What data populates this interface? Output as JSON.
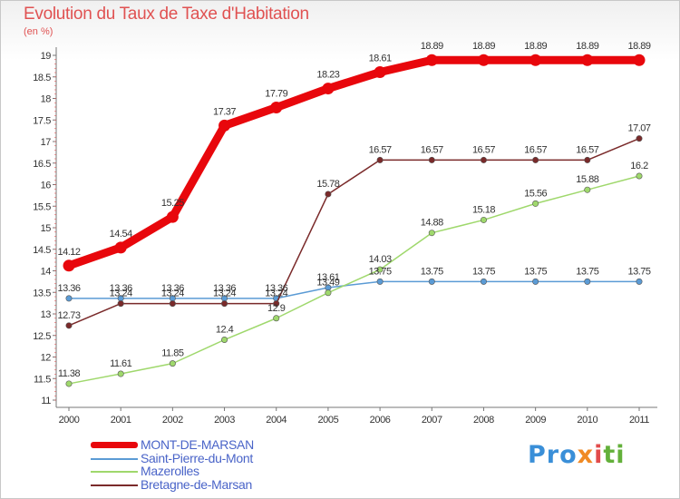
{
  "chart_data": {
    "type": "line",
    "title": "Evolution du Taux de Taxe d'Habitation",
    "ylabel": "(en %)",
    "x": [
      "2000",
      "2001",
      "2002",
      "2003",
      "2004",
      "2005",
      "2006",
      "2007",
      "2008",
      "2009",
      "2010",
      "2011"
    ],
    "ylim": [
      11,
      19
    ],
    "yticks": [
      "11",
      "11.5",
      "12",
      "12.5",
      "13",
      "13.5",
      "14",
      "14.5",
      "15",
      "15.5",
      "16",
      "16.5",
      "17",
      "17.5",
      "18",
      "18.5",
      "19"
    ],
    "grid": false,
    "legend_position": "bottom-left",
    "series": [
      {
        "name": "MONT-DE-MARSAN",
        "color": "#e8070c",
        "width": 9,
        "values": [
          14.12,
          14.54,
          15.25,
          17.37,
          17.79,
          18.23,
          18.61,
          18.89,
          18.89,
          18.89,
          18.89,
          18.89
        ],
        "labels": [
          "14.12",
          "14.54",
          "15.25",
          "17.37",
          "17.79",
          "18.23",
          "18.61",
          "18.89",
          "18.89",
          "18.89",
          "18.89",
          "18.89"
        ]
      },
      {
        "name": "Saint-Pierre-du-Mont",
        "color": "#5b9bd5",
        "width": 1.5,
        "values": [
          13.36,
          13.36,
          13.36,
          13.36,
          13.36,
          13.61,
          13.75,
          13.75,
          13.75,
          13.75,
          13.75,
          13.75
        ],
        "labels": [
          "13.36",
          "13.36",
          "13.36",
          "13.36",
          "13.36",
          "13.61",
          "13.75",
          "13.75",
          "13.75",
          "13.75",
          "13.75",
          "13.75"
        ]
      },
      {
        "name": "Mazerolles",
        "color": "#9fd86c",
        "width": 1.5,
        "values": [
          11.38,
          11.61,
          11.85,
          12.4,
          12.9,
          13.49,
          14.03,
          14.88,
          15.18,
          15.56,
          15.88,
          16.2
        ],
        "labels": [
          "11.38",
          "11.61",
          "11.85",
          "12.4",
          "12.9",
          "13.49",
          "14.03",
          "14.88",
          "15.18",
          "15.56",
          "15.88",
          "16.2"
        ]
      },
      {
        "name": "Bretagne-de-Marsan",
        "color": "#7a2a2a",
        "width": 1.5,
        "values": [
          12.73,
          13.24,
          13.24,
          13.24,
          13.24,
          15.78,
          16.57,
          16.57,
          16.57,
          16.57,
          16.57,
          17.07
        ],
        "labels": [
          "12.73",
          "13.24",
          "13.24",
          "13.24",
          "13.24",
          "15.78",
          "16.57",
          "16.57",
          "16.57",
          "16.57",
          "16.57",
          "17.07"
        ]
      }
    ]
  },
  "legend": {
    "items": [
      "MONT-DE-MARSAN",
      "Saint-Pierre-du-Mont",
      "Mazerolles",
      "Bretagne-de-Marsan"
    ]
  },
  "brand": {
    "name": "Proxiti",
    "parts": [
      "Pro",
      "x",
      "i",
      "ti"
    ]
  }
}
